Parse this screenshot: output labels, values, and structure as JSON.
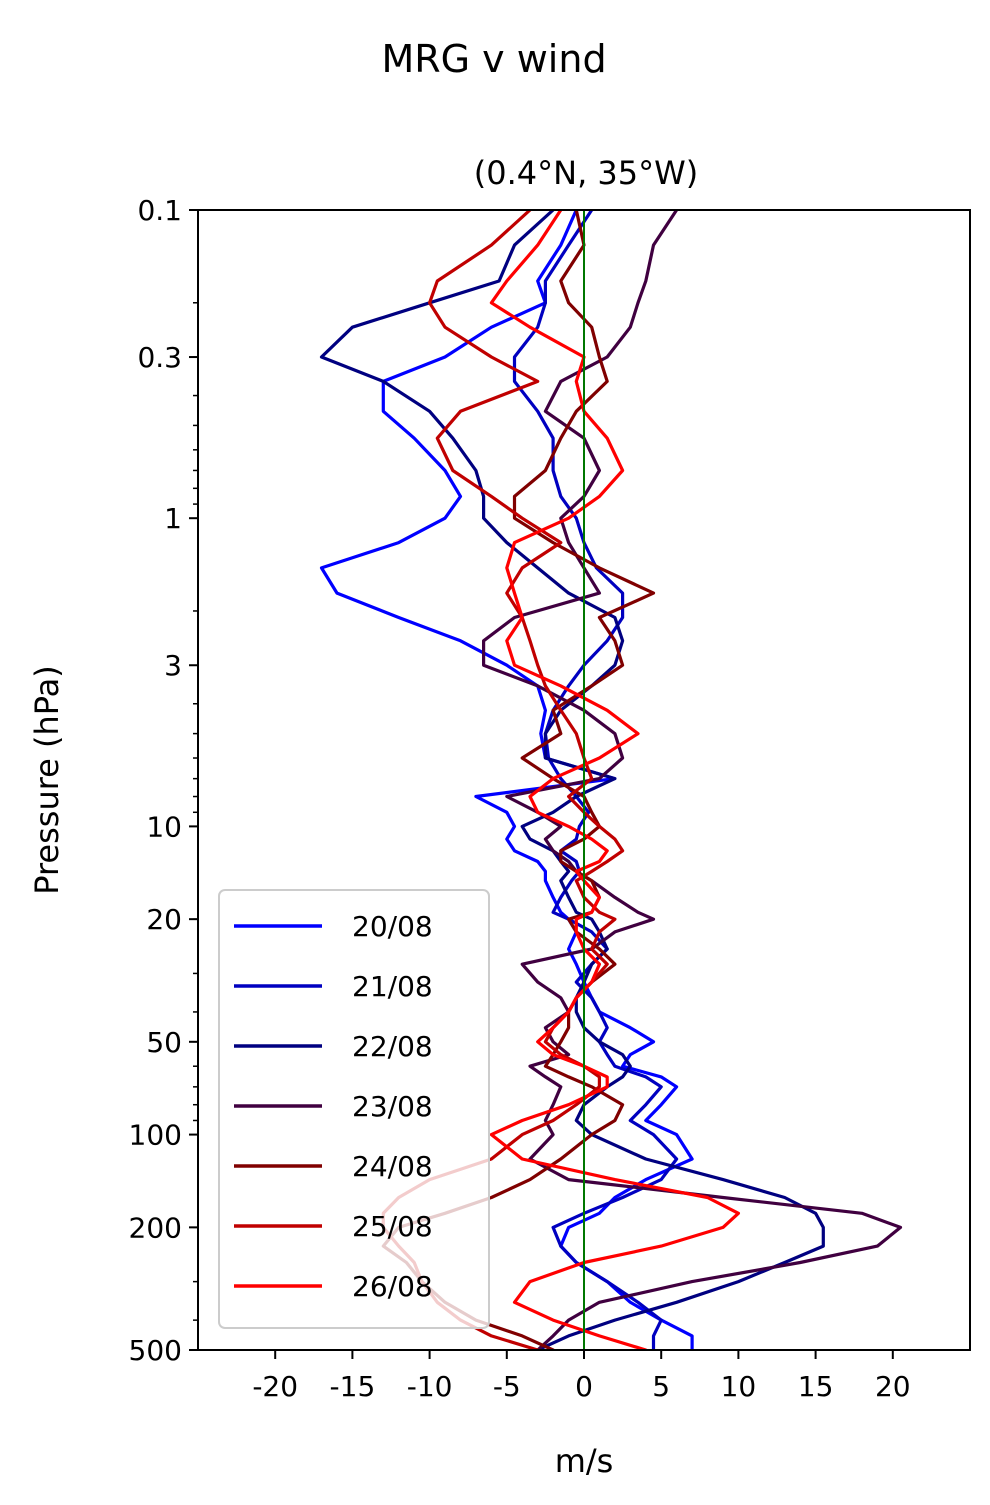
{
  "chart_data": {
    "type": "line",
    "suptitle": "MRG v wind",
    "title": "(0.4°N, 35°W)",
    "xlabel": "m/s",
    "ylabel": "Pressure (hPa)",
    "xlim": [
      -25,
      25
    ],
    "ylim": [
      500,
      0.1
    ],
    "yscale": "log",
    "x_ticks": [
      -20,
      -15,
      -10,
      -5,
      0,
      5,
      10,
      15,
      20
    ],
    "x_tick_labels": [
      "-20",
      "-15",
      "-10",
      "-5",
      "0",
      "5",
      "10",
      "15",
      "20"
    ],
    "y_ticks": [
      0.1,
      0.3,
      1,
      3,
      10,
      20,
      50,
      100,
      200,
      500
    ],
    "y_tick_labels": [
      "0.1",
      "0.3",
      "1",
      "3",
      "10",
      "20",
      "50",
      "100",
      "200",
      "500"
    ],
    "zero_line": {
      "x": 0,
      "color": "#007700"
    },
    "legend_position": "lower-left",
    "pressure_levels": [
      0.1,
      0.13,
      0.17,
      0.2,
      0.24,
      0.3,
      0.36,
      0.45,
      0.55,
      0.7,
      0.85,
      1.0,
      1.2,
      1.45,
      1.75,
      2.1,
      2.5,
      3.0,
      3.5,
      4.2,
      5.0,
      6.0,
      7.0,
      8.0,
      9.0,
      10,
      11,
      12,
      13,
      14,
      15,
      17,
      19,
      20,
      22,
      25,
      28,
      32,
      36,
      40,
      45,
      50,
      55,
      60,
      65,
      70,
      80,
      90,
      100,
      120,
      140,
      160,
      180,
      200,
      230,
      260,
      300,
      350,
      400,
      450,
      500
    ],
    "series": [
      {
        "name": "20/08",
        "color": "#0000ff",
        "values": [
          -0.5,
          -1.5,
          -3,
          -2.5,
          -6,
          -9,
          -13,
          -13,
          -11,
          -9,
          -8,
          -9,
          -12,
          -17,
          -16,
          -12,
          -8,
          -5,
          -3,
          -2.5,
          -2.8,
          -2.5,
          2,
          -7,
          -5,
          -4.5,
          -5,
          -4.5,
          -3,
          -2.5,
          -2.5,
          -2,
          -1.5,
          -1,
          -0.5,
          -1,
          -0.5,
          0,
          0.5,
          1,
          3,
          4.5,
          3,
          2.5,
          5,
          6,
          5,
          4,
          6,
          7,
          4,
          2,
          1,
          -1,
          -1.5,
          -0.5,
          1.5,
          3,
          5,
          7,
          7
        ]
      },
      {
        "name": "21/08",
        "color": "#0000c0",
        "values": [
          0.5,
          -1,
          -2.5,
          -2.5,
          -3,
          -4.5,
          -4.5,
          -3,
          -2,
          -2,
          -1.5,
          -0.5,
          0,
          0.8,
          2.5,
          2.5,
          1.5,
          0,
          -1,
          -2,
          -2.5,
          -2.3,
          -1.5,
          -0.5,
          0.3,
          -0.3,
          -0.5,
          -1.5,
          -0.5,
          -0.3,
          -0.8,
          -1.5,
          -2,
          -1,
          0.5,
          1.5,
          0.5,
          -0.5,
          0.5,
          1,
          1.5,
          1,
          1.5,
          2,
          4,
          5,
          4,
          3,
          4.5,
          6,
          5,
          2.5,
          0,
          -2,
          -1.5,
          -0.5,
          1.5,
          3.5,
          5,
          4.5,
          4.5
        ]
      },
      {
        "name": "22/08",
        "color": "#000080",
        "values": [
          -2,
          -4.5,
          -5.5,
          -10,
          -15,
          -17,
          -13,
          -10,
          -8.5,
          -7,
          -6.5,
          -6.5,
          -5,
          -3,
          -1,
          2,
          2.5,
          2,
          0.5,
          -1.5,
          -2.5,
          -2.5,
          2,
          -0.5,
          -2,
          -4,
          -3.5,
          -2,
          -1.5,
          -1,
          -1.5,
          -1,
          -0.5,
          0.5,
          1,
          1.5,
          0.5,
          0,
          -0.5,
          -0.5,
          0,
          1,
          2.5,
          3,
          2.5,
          1.5,
          0,
          -0.5,
          0.5,
          4,
          9,
          13,
          15,
          15.5,
          15.5,
          13,
          10,
          6,
          2,
          -1,
          -3
        ]
      },
      {
        "name": "23/08",
        "color": "#400040",
        "values": [
          6,
          4.5,
          4,
          3.5,
          3,
          1.5,
          -1.5,
          -2.5,
          0,
          1,
          0,
          -1.5,
          -1,
          0,
          1,
          -4.5,
          -6.5,
          -6.5,
          -3,
          0,
          2,
          2.5,
          1,
          -5,
          -3,
          -1.5,
          -2.5,
          -2,
          -1,
          -0.5,
          0.5,
          2,
          3.5,
          4.5,
          2,
          0.5,
          -4,
          -3,
          -1.5,
          -1,
          -2.5,
          -2,
          -1,
          -3.5,
          -2.5,
          -1.5,
          -2,
          -2.5,
          -2,
          -3.5,
          -1,
          9,
          18,
          20.5,
          19,
          14,
          7,
          1,
          -1,
          -2,
          -3
        ]
      },
      {
        "name": "24/08",
        "color": "#800000",
        "values": [
          -0.5,
          0,
          -1.5,
          -1,
          0.5,
          1,
          1.5,
          -0.5,
          -1.5,
          -2.5,
          -4.5,
          -4.5,
          -2,
          1,
          4.5,
          1,
          2,
          2.5,
          0.5,
          -2,
          -1.5,
          -4,
          -2,
          0,
          0.5,
          1,
          0,
          -1.5,
          -1.5,
          -0.5,
          0.5,
          1,
          0.5,
          -1,
          -0.5,
          1,
          2,
          0.5,
          -0.5,
          -1,
          -1,
          -1.5,
          -2,
          -2.5,
          -1,
          0.5,
          2.5,
          2,
          0.5,
          -1.5,
          -3.5,
          -6,
          -9,
          -12,
          -13,
          -11.5,
          -10.5,
          -9,
          -7,
          -4,
          -2
        ]
      },
      {
        "name": "25/08",
        "color": "#c00000",
        "values": [
          -3.5,
          -6,
          -9.5,
          -10,
          -9,
          -6,
          -3,
          -8,
          -9.5,
          -8.5,
          -6,
          -4,
          -1.5,
          -4,
          -5,
          -4,
          -3.5,
          -3,
          -2.5,
          -1.5,
          -0.5,
          0,
          0.5,
          -1,
          0,
          1,
          2,
          2.5,
          1.5,
          0.5,
          -0.5,
          0,
          1,
          2,
          1,
          0.5,
          1.5,
          0.5,
          -0.5,
          -1,
          -2,
          -2.5,
          -1.5,
          0,
          1,
          1,
          -0.5,
          -2,
          -4,
          -6,
          -10,
          -12,
          -13,
          -13,
          -12,
          -11,
          -10.5,
          -9.5,
          -8,
          -6,
          -3
        ]
      },
      {
        "name": "26/08",
        "color": "#ff0000",
        "values": [
          -1.5,
          -3,
          -5,
          -6,
          -3.5,
          0,
          -0.5,
          0,
          1.5,
          2.5,
          1,
          -1,
          -4.5,
          -5,
          -4.5,
          -4,
          -5,
          -4.5,
          -1.5,
          1.5,
          3.5,
          1,
          -2,
          -3.5,
          -3,
          -1,
          0.5,
          1.5,
          1,
          -0.5,
          0,
          1,
          0.5,
          -0.5,
          -0.5,
          0,
          1,
          0.5,
          -0.5,
          -1,
          -2,
          -3,
          -2,
          0,
          1.5,
          1.5,
          -1,
          -4,
          -6,
          -4,
          2,
          8,
          10,
          9,
          5,
          0,
          -3.5,
          -4.5,
          -2,
          1,
          4
        ]
      }
    ]
  }
}
